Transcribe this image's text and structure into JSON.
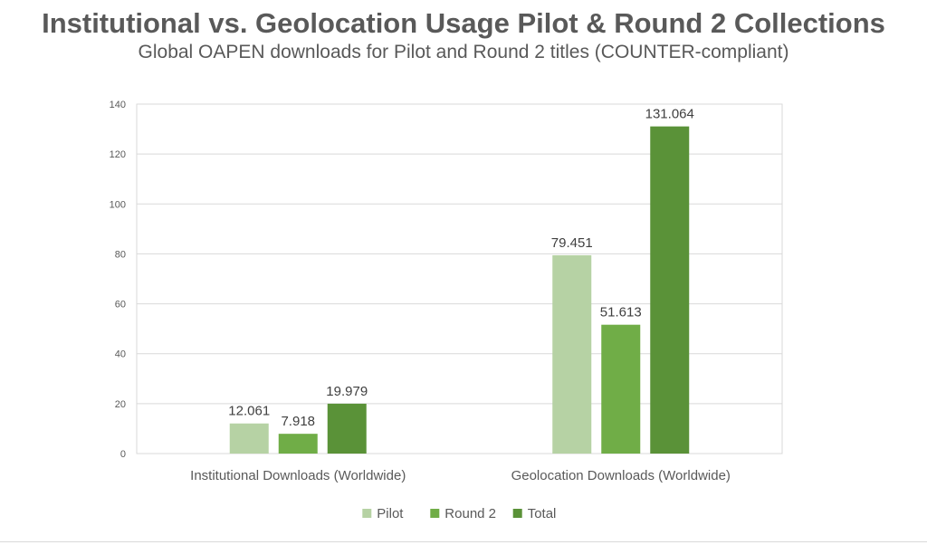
{
  "title": "Institutional vs. Geolocation Usage Pilot & Round 2 Collections",
  "subtitle": "Global OAPEN downloads for Pilot and Round 2 titles (COUNTER-compliant)",
  "colors": {
    "pilot": "#b6d2a4",
    "round2": "#70ad47",
    "total": "#5a9238"
  },
  "chart_data": {
    "type": "bar",
    "categories": [
      "Institutional Downloads (Worldwide)",
      "Geolocation Downloads (Worldwide)"
    ],
    "series": [
      {
        "name": "Pilot",
        "values": [
          12.061,
          79.451
        ],
        "labels": [
          "12.061",
          "79.451"
        ]
      },
      {
        "name": "Round 2",
        "values": [
          7.918,
          51.613
        ],
        "labels": [
          "7.918",
          "51.613"
        ]
      },
      {
        "name": "Total",
        "values": [
          19.979,
          131.064
        ],
        "labels": [
          "19.979",
          "131.064"
        ]
      }
    ],
    "ylim": [
      0,
      140
    ],
    "yticks": [
      "0",
      "20",
      "40",
      "60",
      "80",
      "100",
      "120",
      "140"
    ],
    "grid": true,
    "legend": "bottom"
  }
}
